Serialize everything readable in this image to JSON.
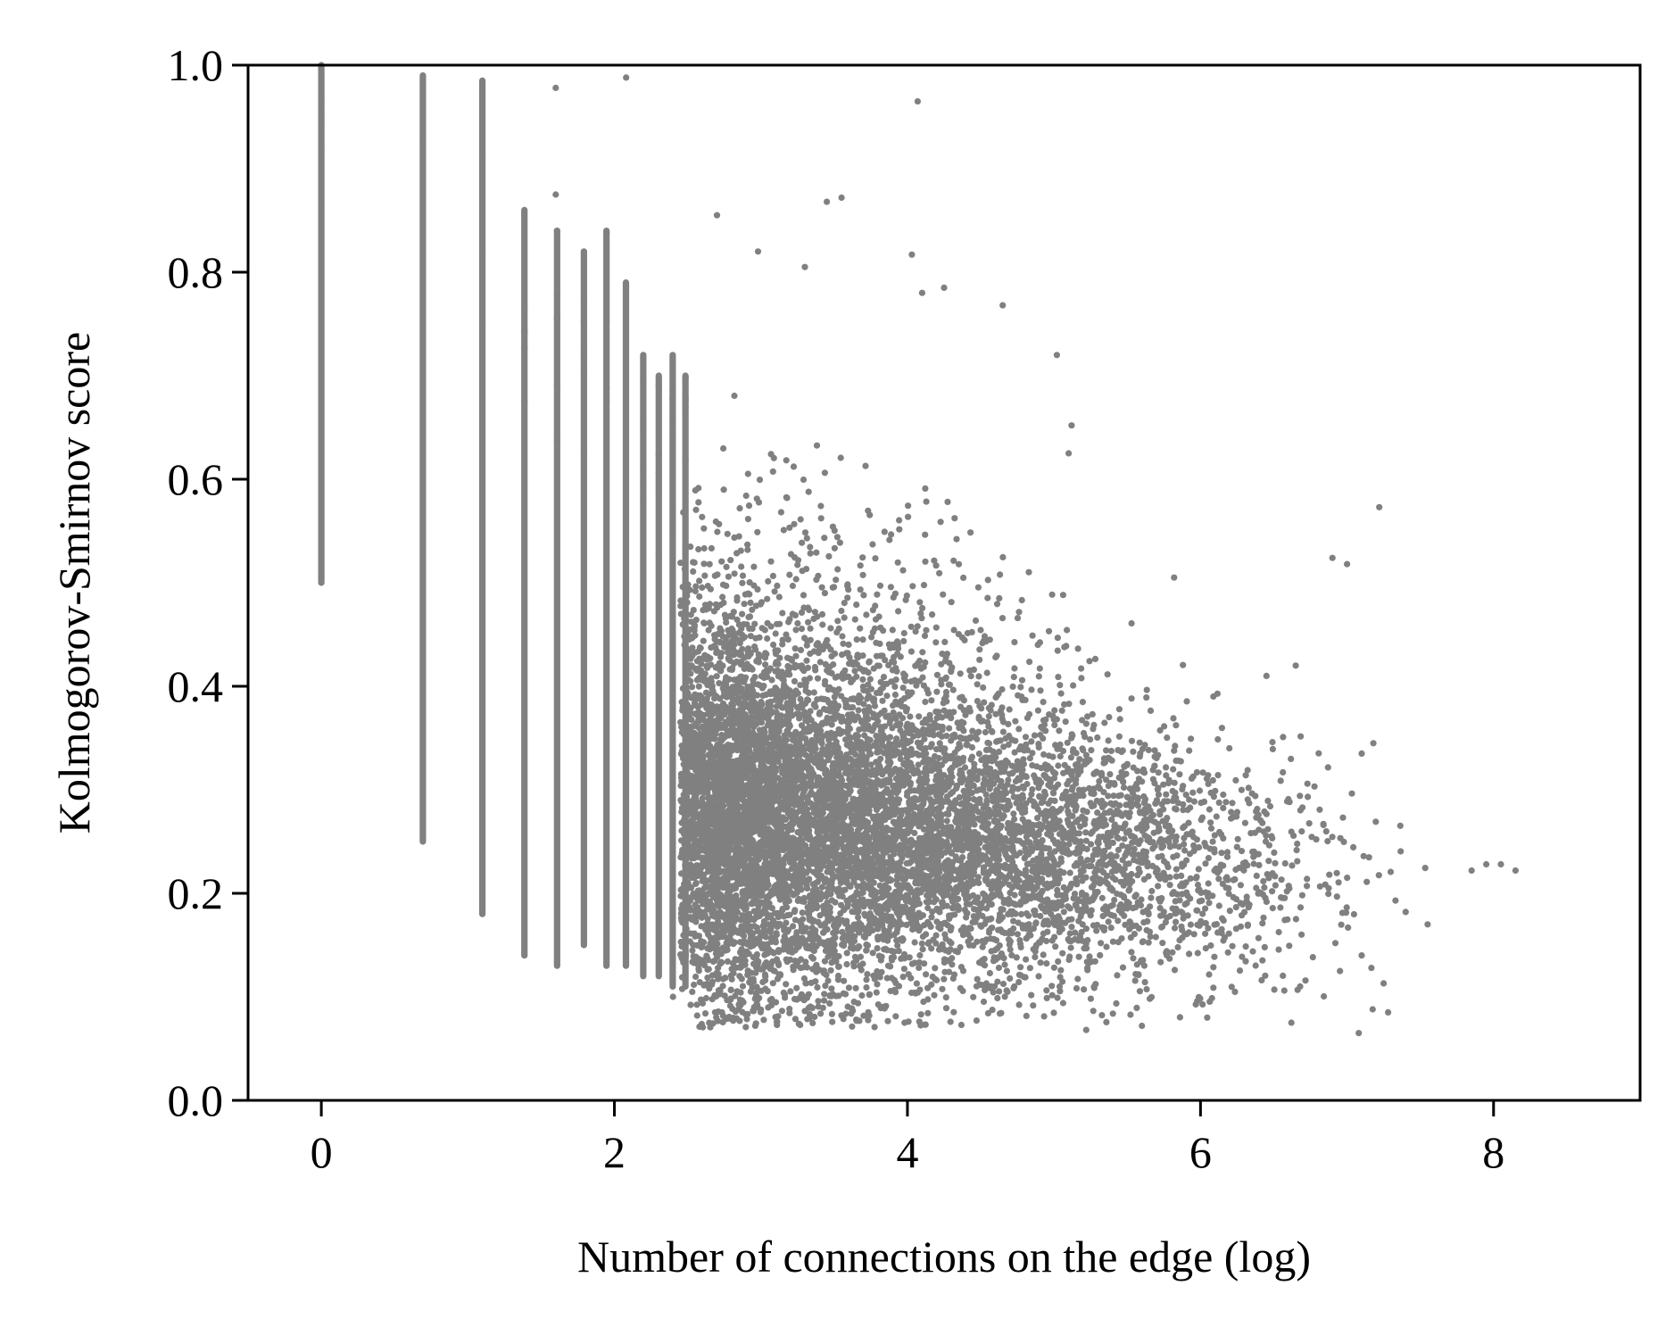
{
  "chart_data": {
    "type": "scatter",
    "title": "",
    "xlabel": "Number of connections on the edge (log)",
    "ylabel": "Kolmogorov-Smirnov score",
    "xlim": [
      -0.5,
      9
    ],
    "ylim": [
      0,
      1
    ],
    "xticks": [
      0,
      2,
      4,
      6,
      8
    ],
    "yticks": [
      0.0,
      0.2,
      0.4,
      0.6,
      0.8,
      1.0
    ],
    "xtick_labels": [
      "0",
      "2",
      "4",
      "6",
      "8"
    ],
    "ytick_labels": [
      "0.0",
      "0.2",
      "0.4",
      "0.6",
      "0.8",
      "1.0"
    ],
    "grid": false,
    "legend": "none",
    "marker_color": "#808080",
    "columns": [
      {
        "x": 0.0,
        "y_min": 0.5,
        "y_max": 1.0
      },
      {
        "x": 0.693,
        "y_min": 0.25,
        "y_max": 0.99
      },
      {
        "x": 1.099,
        "y_min": 0.18,
        "y_max": 0.985
      },
      {
        "x": 1.386,
        "y_min": 0.14,
        "y_max": 0.86
      },
      {
        "x": 1.609,
        "y_min": 0.13,
        "y_max": 0.84
      },
      {
        "x": 1.792,
        "y_min": 0.15,
        "y_max": 0.82
      },
      {
        "x": 1.946,
        "y_min": 0.13,
        "y_max": 0.84
      },
      {
        "x": 2.079,
        "y_min": 0.13,
        "y_max": 0.79
      },
      {
        "x": 2.197,
        "y_min": 0.12,
        "y_max": 0.72
      },
      {
        "x": 2.303,
        "y_min": 0.12,
        "y_max": 0.7
      },
      {
        "x": 2.398,
        "y_min": 0.11,
        "y_max": 0.72
      },
      {
        "x": 2.485,
        "y_min": 0.11,
        "y_max": 0.7
      }
    ],
    "outliers": [
      {
        "x": 1.6,
        "y": 0.875
      },
      {
        "x": 1.6,
        "y": 0.978
      },
      {
        "x": 2.08,
        "y": 0.988
      },
      {
        "x": 4.07,
        "y": 0.965
      },
      {
        "x": 3.45,
        "y": 0.868
      },
      {
        "x": 3.55,
        "y": 0.872
      },
      {
        "x": 2.7,
        "y": 0.855
      },
      {
        "x": 2.98,
        "y": 0.82
      },
      {
        "x": 3.3,
        "y": 0.805
      },
      {
        "x": 4.03,
        "y": 0.817
      },
      {
        "x": 4.1,
        "y": 0.78
      },
      {
        "x": 4.25,
        "y": 0.785
      },
      {
        "x": 4.65,
        "y": 0.768
      },
      {
        "x": 5.02,
        "y": 0.72
      },
      {
        "x": 5.12,
        "y": 0.652
      },
      {
        "x": 5.1,
        "y": 0.625
      },
      {
        "x": 6.9,
        "y": 0.524
      },
      {
        "x": 7.0,
        "y": 0.518
      },
      {
        "x": 7.22,
        "y": 0.573
      },
      {
        "x": 5.82,
        "y": 0.505
      },
      {
        "x": 7.18,
        "y": 0.345
      },
      {
        "x": 7.1,
        "y": 0.335
      },
      {
        "x": 6.65,
        "y": 0.42
      },
      {
        "x": 6.45,
        "y": 0.41
      },
      {
        "x": 7.85,
        "y": 0.222
      },
      {
        "x": 7.95,
        "y": 0.228
      },
      {
        "x": 8.05,
        "y": 0.228
      },
      {
        "x": 8.15,
        "y": 0.222
      },
      {
        "x": 7.55,
        "y": 0.17
      },
      {
        "x": 7.4,
        "y": 0.182
      },
      {
        "x": 7.28,
        "y": 0.085
      },
      {
        "x": 7.08,
        "y": 0.065
      },
      {
        "x": 6.62,
        "y": 0.075
      },
      {
        "x": 5.22,
        "y": 0.068
      },
      {
        "x": 5.6,
        "y": 0.072
      },
      {
        "x": 3.98,
        "y": 0.075
      },
      {
        "x": 2.4,
        "y": 0.1
      },
      {
        "x": 7.25,
        "y": 0.113
      },
      {
        "x": 7.1,
        "y": 0.14
      },
      {
        "x": 6.68,
        "y": 0.11
      }
    ],
    "density_clusters": [
      {
        "cx": 3.2,
        "cy": 0.27,
        "sx": 0.7,
        "sy": 0.085,
        "n": 5200
      },
      {
        "cx": 2.75,
        "cy": 0.3,
        "sx": 0.2,
        "sy": 0.1,
        "n": 1600
      },
      {
        "cx": 4.5,
        "cy": 0.25,
        "sx": 0.7,
        "sy": 0.065,
        "n": 2400
      },
      {
        "cx": 3.5,
        "cy": 0.45,
        "sx": 0.8,
        "sy": 0.1,
        "n": 450
      },
      {
        "cx": 5.6,
        "cy": 0.23,
        "sx": 0.6,
        "sy": 0.06,
        "n": 600
      },
      {
        "cx": 6.4,
        "cy": 0.21,
        "sx": 0.45,
        "sy": 0.055,
        "n": 160
      }
    ]
  }
}
